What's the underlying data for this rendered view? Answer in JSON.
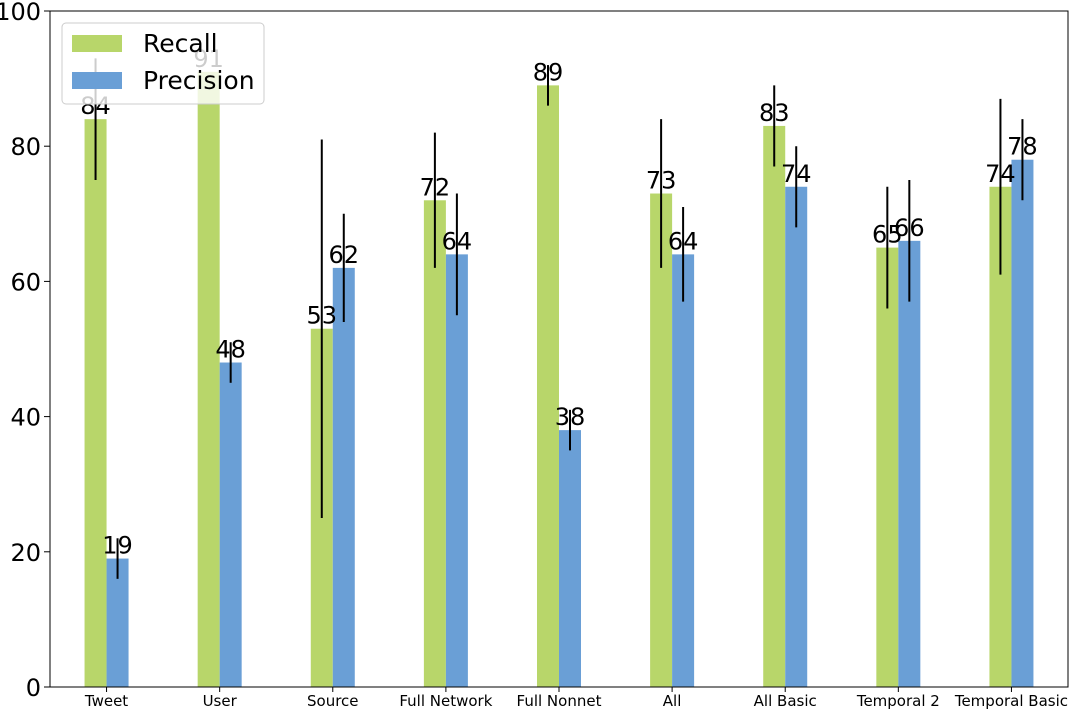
{
  "chart_data": {
    "type": "bar",
    "categories": [
      "Tweet",
      "User",
      "Source",
      "Full Network",
      "Full Nonnet",
      "All",
      "All Basic",
      "Temporal 2",
      "Temporal Basic"
    ],
    "series": [
      {
        "name": "Recall",
        "color": "#b8d66a",
        "values": [
          84,
          91,
          53,
          72,
          89,
          73,
          83,
          65,
          74
        ],
        "error_low": [
          75,
          91,
          25,
          62,
          86,
          62,
          77,
          56,
          61
        ],
        "error_high": [
          93,
          91,
          81,
          82,
          92,
          84,
          89,
          74,
          87
        ]
      },
      {
        "name": "Precision",
        "color": "#6a9fd6",
        "values": [
          19,
          48,
          62,
          64,
          38,
          64,
          74,
          66,
          78
        ],
        "error_low": [
          16,
          45,
          54,
          55,
          35,
          57,
          68,
          57,
          72
        ],
        "error_high": [
          22,
          51,
          70,
          73,
          41,
          71,
          80,
          75,
          84
        ]
      }
    ],
    "data_labels": [
      [
        "84",
        "91",
        "53",
        "72",
        "89",
        "73",
        "83",
        "65",
        "74"
      ],
      [
        "19",
        "48",
        "62",
        "64",
        "38",
        "64",
        "74",
        "66",
        "78"
      ]
    ],
    "title": "",
    "xlabel": "",
    "ylabel": "",
    "ylim": [
      0,
      100
    ],
    "yticks": [
      "0",
      "20",
      "40",
      "60",
      "80",
      "100"
    ],
    "grid": false,
    "legend_position": "top-left"
  }
}
